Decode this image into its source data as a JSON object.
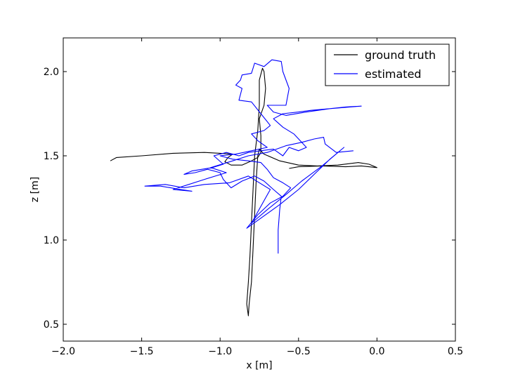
{
  "chart_data": {
    "type": "line",
    "xlabel": "x [m]",
    "ylabel": "z [m]",
    "xlim": [
      -2.0,
      0.5
    ],
    "ylim": [
      0.4,
      2.2
    ],
    "xticks": [
      "−2.0",
      "−1.5",
      "−1.0",
      "−0.5",
      "0.0",
      "0.5"
    ],
    "xtick_values": [
      -2.0,
      -1.5,
      -1.0,
      -0.5,
      0.0,
      0.5
    ],
    "yticks": [
      "0.5",
      "1.0",
      "1.5",
      "2.0"
    ],
    "ytick_values": [
      0.5,
      1.0,
      1.5,
      2.0
    ],
    "grid": false,
    "legend_position": "top-right",
    "series": [
      {
        "name": "ground truth",
        "color": "#000000",
        "points": [
          [
            -1.7,
            1.47
          ],
          [
            -1.66,
            1.49
          ],
          [
            -1.5,
            1.5
          ],
          [
            -1.3,
            1.515
          ],
          [
            -1.1,
            1.52
          ],
          [
            -1.0,
            1.515
          ],
          [
            -0.92,
            1.51
          ],
          [
            -0.95,
            1.49
          ],
          [
            -0.97,
            1.465
          ],
          [
            -0.93,
            1.445
          ],
          [
            -0.86,
            1.445
          ],
          [
            -0.8,
            1.47
          ],
          [
            -0.76,
            1.49
          ],
          [
            -0.74,
            1.52
          ],
          [
            -0.74,
            1.62
          ],
          [
            -0.75,
            1.72
          ],
          [
            -0.72,
            1.8
          ],
          [
            -0.71,
            1.9
          ],
          [
            -0.72,
            2.0
          ],
          [
            -0.73,
            2.02
          ],
          [
            -0.75,
            1.95
          ],
          [
            -0.75,
            1.8
          ],
          [
            -0.76,
            1.65
          ],
          [
            -0.78,
            1.5
          ],
          [
            -0.79,
            1.3
          ],
          [
            -0.8,
            1.1
          ],
          [
            -0.81,
            0.9
          ],
          [
            -0.82,
            0.75
          ],
          [
            -0.83,
            0.62
          ],
          [
            -0.82,
            0.55
          ],
          [
            -0.815,
            0.62
          ],
          [
            -0.8,
            0.75
          ],
          [
            -0.79,
            0.95
          ],
          [
            -0.78,
            1.15
          ],
          [
            -0.77,
            1.35
          ],
          [
            -0.76,
            1.5
          ],
          [
            -0.75,
            1.54
          ],
          [
            -0.72,
            1.51
          ],
          [
            -0.62,
            1.47
          ],
          [
            -0.5,
            1.445
          ],
          [
            -0.38,
            1.44
          ],
          [
            -0.25,
            1.445
          ],
          [
            -0.12,
            1.46
          ],
          [
            -0.05,
            1.45
          ],
          [
            0.0,
            1.43
          ],
          [
            -0.1,
            1.44
          ],
          [
            -0.2,
            1.435
          ],
          [
            -0.35,
            1.44
          ],
          [
            -0.5,
            1.435
          ],
          [
            -0.56,
            1.425
          ]
        ]
      },
      {
        "name": "estimated",
        "color": "#0000ff",
        "points": [
          [
            -0.63,
            0.92
          ],
          [
            -0.63,
            1.06
          ],
          [
            -0.62,
            1.18
          ],
          [
            -0.61,
            1.26
          ],
          [
            -0.66,
            1.3
          ],
          [
            -0.72,
            1.35
          ],
          [
            -0.78,
            1.38
          ],
          [
            -0.86,
            1.35
          ],
          [
            -0.93,
            1.31
          ],
          [
            -0.98,
            1.36
          ],
          [
            -1.0,
            1.4
          ],
          [
            -1.08,
            1.42
          ],
          [
            -1.16,
            1.4
          ],
          [
            -1.23,
            1.39
          ],
          [
            -1.18,
            1.41
          ],
          [
            -1.05,
            1.43
          ],
          [
            -0.98,
            1.45
          ],
          [
            -1.04,
            1.5
          ],
          [
            -0.96,
            1.52
          ],
          [
            -0.88,
            1.5
          ],
          [
            -0.82,
            1.52
          ],
          [
            -0.74,
            1.53
          ],
          [
            -0.66,
            1.54
          ],
          [
            -0.6,
            1.5
          ],
          [
            -0.56,
            1.55
          ],
          [
            -0.5,
            1.53
          ],
          [
            -0.45,
            1.55
          ],
          [
            -0.48,
            1.58
          ],
          [
            -0.53,
            1.63
          ],
          [
            -0.6,
            1.67
          ],
          [
            -0.66,
            1.72
          ],
          [
            -0.6,
            1.75
          ],
          [
            -0.5,
            1.76
          ],
          [
            -0.42,
            1.77
          ],
          [
            -0.3,
            1.78
          ],
          [
            -0.2,
            1.79
          ],
          [
            -0.1,
            1.795
          ],
          [
            -0.3,
            1.78
          ],
          [
            -0.45,
            1.76
          ],
          [
            -0.58,
            1.74
          ],
          [
            -0.66,
            1.76
          ],
          [
            -0.7,
            1.8
          ],
          [
            -0.58,
            1.8
          ],
          [
            -0.56,
            1.9
          ],
          [
            -0.6,
            2.0
          ],
          [
            -0.61,
            2.06
          ],
          [
            -0.67,
            2.07
          ],
          [
            -0.72,
            2.03
          ],
          [
            -0.78,
            2.05
          ],
          [
            -0.8,
            1.99
          ],
          [
            -0.86,
            1.98
          ],
          [
            -0.87,
            1.95
          ],
          [
            -0.9,
            1.92
          ],
          [
            -0.86,
            1.9
          ],
          [
            -0.88,
            1.83
          ],
          [
            -0.8,
            1.82
          ],
          [
            -0.74,
            1.75
          ],
          [
            -0.68,
            1.68
          ],
          [
            -0.72,
            1.65
          ],
          [
            -0.8,
            1.63
          ],
          [
            -0.76,
            1.59
          ],
          [
            -0.7,
            1.55
          ],
          [
            -0.8,
            1.53
          ],
          [
            -0.9,
            1.51
          ],
          [
            -1.0,
            1.5
          ],
          [
            -0.92,
            1.48
          ],
          [
            -0.82,
            1.47
          ],
          [
            -0.74,
            1.46
          ],
          [
            -0.7,
            1.42
          ],
          [
            -0.66,
            1.37
          ],
          [
            -0.6,
            1.34
          ],
          [
            -0.55,
            1.31
          ],
          [
            -0.6,
            1.26
          ],
          [
            -0.68,
            1.22
          ],
          [
            -0.76,
            1.15
          ],
          [
            -0.83,
            1.07
          ],
          [
            -0.74,
            1.13
          ],
          [
            -0.62,
            1.21
          ],
          [
            -0.5,
            1.3
          ],
          [
            -0.4,
            1.39
          ],
          [
            -0.3,
            1.48
          ],
          [
            -0.21,
            1.55
          ],
          [
            -0.35,
            1.44
          ],
          [
            -0.48,
            1.35
          ],
          [
            -0.58,
            1.27
          ],
          [
            -0.7,
            1.18
          ],
          [
            -0.8,
            1.1
          ],
          [
            -0.68,
            1.3
          ],
          [
            -0.82,
            1.38
          ],
          [
            -0.94,
            1.34
          ],
          [
            -1.1,
            1.33
          ],
          [
            -1.23,
            1.31
          ],
          [
            -1.35,
            1.33
          ],
          [
            -1.48,
            1.32
          ],
          [
            -1.38,
            1.32
          ],
          [
            -1.25,
            1.3
          ],
          [
            -1.18,
            1.29
          ],
          [
            -1.3,
            1.3
          ],
          [
            -1.1,
            1.36
          ],
          [
            -0.96,
            1.4
          ],
          [
            -1.06,
            1.43
          ],
          [
            -0.92,
            1.47
          ],
          [
            -0.82,
            1.5
          ],
          [
            -0.7,
            1.52
          ],
          [
            -0.58,
            1.56
          ],
          [
            -0.48,
            1.58
          ],
          [
            -0.4,
            1.6
          ],
          [
            -0.34,
            1.61
          ],
          [
            -0.33,
            1.57
          ],
          [
            -0.26,
            1.52
          ],
          [
            -0.15,
            1.53
          ]
        ]
      }
    ]
  }
}
